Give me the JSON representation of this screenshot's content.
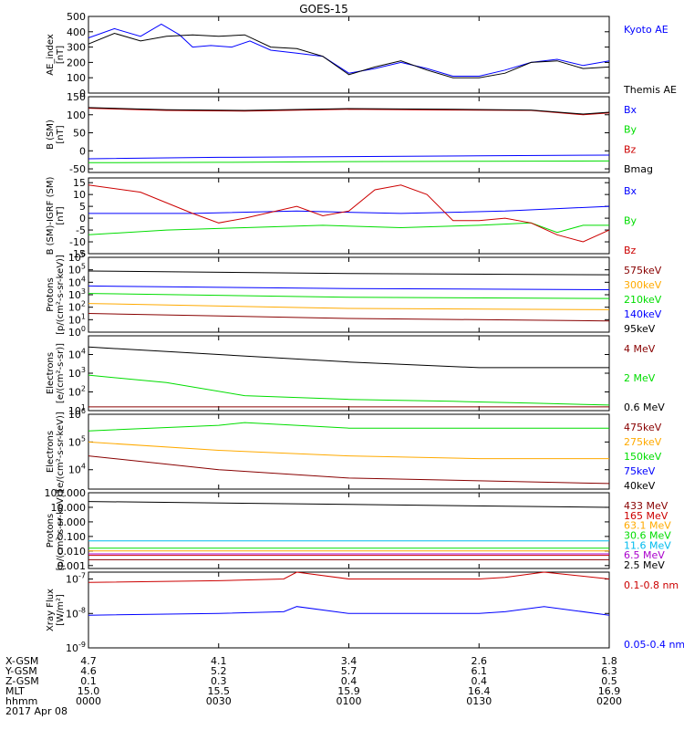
{
  "title": "GOES-15",
  "colors": {
    "black": "#000000",
    "blue": "#0000ff",
    "green": "#00dd00",
    "red": "#cc0000",
    "orange": "#ffaa00",
    "cyan": "#00bbee",
    "purple": "#aa00cc",
    "darkred": "#880000"
  },
  "chart_data": [
    {
      "type": "line",
      "ylabel": "AE_index\n[nT]",
      "yscale": "linear",
      "ylim": [
        0,
        500
      ],
      "yticks": [
        "0",
        "100",
        "200",
        "300",
        "400",
        "500"
      ],
      "series": [
        {
          "name": "Kyoto AE",
          "color": "blue",
          "x": [
            0,
            0.1,
            0.2,
            0.28,
            0.35,
            0.4,
            0.47,
            0.55,
            0.62,
            0.7,
            0.8,
            0.9,
            1.0,
            1.1,
            1.2,
            1.3,
            1.4,
            1.5,
            1.6,
            1.7,
            1.8,
            1.9,
            2.0
          ],
          "y": [
            360,
            420,
            370,
            450,
            380,
            300,
            310,
            300,
            340,
            280,
            260,
            240,
            130,
            160,
            200,
            160,
            110,
            110,
            150,
            200,
            220,
            180,
            210
          ]
        },
        {
          "name": "Themis AE",
          "color": "black",
          "x": [
            0,
            0.1,
            0.2,
            0.3,
            0.4,
            0.5,
            0.6,
            0.7,
            0.8,
            0.9,
            1.0,
            1.1,
            1.2,
            1.3,
            1.4,
            1.5,
            1.6,
            1.7,
            1.8,
            1.9,
            2.0
          ],
          "y": [
            320,
            390,
            340,
            370,
            380,
            370,
            380,
            300,
            290,
            240,
            120,
            170,
            210,
            150,
            100,
            100,
            130,
            200,
            210,
            160,
            170
          ]
        }
      ]
    },
    {
      "type": "line",
      "ylabel": "B (SM)\n[nT]",
      "yscale": "linear",
      "ylim": [
        -60,
        150
      ],
      "yticks": [
        "-50",
        "0",
        "50",
        "100",
        "150"
      ],
      "series": [
        {
          "name": "Bx",
          "color": "blue",
          "x": [
            0,
            0.5,
            1.0,
            1.5,
            2.0
          ],
          "y": [
            -22,
            -18,
            -16,
            -14,
            -12
          ]
        },
        {
          "name": "By",
          "color": "green",
          "x": [
            0,
            0.5,
            1.0,
            1.5,
            2.0
          ],
          "y": [
            -33,
            -32,
            -30,
            -29,
            -28
          ]
        },
        {
          "name": "Bz",
          "color": "red",
          "x": [
            0,
            0.3,
            0.6,
            1.0,
            1.4,
            1.7,
            1.9,
            2.0
          ],
          "y": [
            118,
            112,
            110,
            115,
            113,
            112,
            100,
            105
          ]
        },
        {
          "name": "Bmag",
          "color": "black",
          "x": [
            0,
            0.3,
            0.6,
            1.0,
            1.4,
            1.7,
            1.9,
            2.0
          ],
          "y": [
            120,
            114,
            112,
            117,
            115,
            113,
            102,
            107
          ]
        }
      ]
    },
    {
      "type": "line",
      "ylabel": "B (SM)-IGRF (SM)\n[nT]",
      "yscale": "linear",
      "ylim": [
        -15,
        17
      ],
      "yticks": [
        "-15",
        "-10",
        "-5",
        "0",
        "5",
        "10",
        "15"
      ],
      "series": [
        {
          "name": "Bx",
          "color": "blue",
          "x": [
            0,
            0.4,
            0.8,
            1.2,
            1.6,
            2.0
          ],
          "y": [
            2,
            2,
            3,
            2,
            3,
            5
          ]
        },
        {
          "name": "By",
          "color": "green",
          "x": [
            0,
            0.3,
            0.6,
            0.9,
            1.2,
            1.5,
            1.7,
            1.8,
            1.9,
            2.0
          ],
          "y": [
            -7,
            -5,
            -4,
            -3,
            -4,
            -3,
            -2,
            -6,
            -3,
            -3
          ]
        },
        {
          "name": "Bz",
          "color": "red",
          "x": [
            0,
            0.2,
            0.4,
            0.5,
            0.6,
            0.8,
            0.9,
            1.0,
            1.1,
            1.2,
            1.3,
            1.4,
            1.5,
            1.6,
            1.7,
            1.8,
            1.9,
            2.0
          ],
          "y": [
            14,
            11,
            2,
            -2,
            0,
            5,
            1,
            3,
            12,
            14,
            10,
            -1,
            -1,
            0,
            -2,
            -7,
            -10,
            -5
          ]
        }
      ]
    },
    {
      "type": "line",
      "ylabel": "Protons\n[p/(cm²-s-sr-keV)]",
      "yscale": "log",
      "ylim": [
        0,
        6
      ],
      "ytick_exponents": [
        "0",
        "1",
        "2",
        "3",
        "4",
        "5",
        "6"
      ],
      "ytick_base": "10",
      "series": [
        {
          "name": "575keV",
          "color": "darkred",
          "x": [
            0,
            1.0,
            2.0
          ],
          "y": [
            1.5,
            1.1,
            0.9
          ]
        },
        {
          "name": "300keV",
          "color": "orange",
          "x": [
            0,
            1.0,
            2.0
          ],
          "y": [
            2.3,
            1.9,
            1.8
          ]
        },
        {
          "name": "210keV",
          "color": "green",
          "x": [
            0,
            1.0,
            2.0
          ],
          "y": [
            3.1,
            2.8,
            2.7
          ]
        },
        {
          "name": "140keV",
          "color": "blue",
          "x": [
            0,
            1.0,
            2.0
          ],
          "y": [
            3.7,
            3.5,
            3.4
          ]
        },
        {
          "name": "95keV",
          "color": "black",
          "x": [
            0,
            1.0,
            2.0
          ],
          "y": [
            4.9,
            4.7,
            4.6
          ]
        }
      ]
    },
    {
      "type": "line",
      "ylabel": "Electrons\n[e/(cm²-s-sr)]",
      "yscale": "log",
      "ylim": [
        1,
        5
      ],
      "ytick_exponents": [
        "1",
        "2",
        "3",
        "4"
      ],
      "ytick_base": "10",
      "series": [
        {
          "name": "4 MeV",
          "color": "darkred",
          "x": [
            0,
            1.0,
            2.0
          ],
          "y": [
            1.2,
            1.2,
            1.2
          ]
        },
        {
          "name": "2 MeV",
          "color": "green",
          "x": [
            0,
            0.3,
            0.6,
            1.0,
            1.4,
            1.7,
            2.0
          ],
          "y": [
            2.9,
            2.5,
            1.8,
            1.6,
            1.5,
            1.4,
            1.3
          ]
        },
        {
          "name": "0.6 MeV",
          "color": "black",
          "x": [
            0,
            0.5,
            1.0,
            1.5,
            2.0
          ],
          "y": [
            4.4,
            4.0,
            3.6,
            3.3,
            3.3
          ]
        }
      ]
    },
    {
      "type": "line",
      "ylabel": "Electrons\n[e/(cm²-s-sr-keV)]",
      "yscale": "log",
      "ylim": [
        3.3,
        6
      ],
      "ytick_exponents": [
        "4",
        "5",
        "6"
      ],
      "ytick_base": "10",
      "series": [
        {
          "name": "475keV",
          "color": "darkred",
          "x": [
            0,
            0.5,
            1.0,
            1.5,
            2.0
          ],
          "y": [
            4.5,
            4.0,
            3.7,
            3.6,
            3.5
          ]
        },
        {
          "name": "275keV",
          "color": "orange",
          "x": [
            0,
            0.5,
            1.0,
            1.5,
            2.0
          ],
          "y": [
            5.0,
            4.7,
            4.5,
            4.4,
            4.4
          ]
        },
        {
          "name": "150keV",
          "color": "green",
          "x": [
            0,
            0.5,
            0.6,
            1.0,
            1.5,
            2.0
          ],
          "y": [
            5.4,
            5.6,
            5.7,
            5.5,
            5.5,
            5.5
          ]
        },
        {
          "name": "75keV",
          "color": "blue",
          "x": [],
          "y": []
        },
        {
          "name": "40keV",
          "color": "black",
          "x": [],
          "y": []
        }
      ]
    },
    {
      "type": "line",
      "ylabel": "Protons\n[p/(cm²-s-sr-keV)]",
      "yscale": "log",
      "ylim": [
        -3.2,
        2
      ],
      "yticks": [
        "0.001",
        "0.010",
        "0.100",
        "1.000",
        "10.000",
        "100.000"
      ],
      "series": [
        {
          "name": "433 MeV",
          "color": "darkred",
          "x": [
            0,
            1.0,
            2.0
          ],
          "y": [
            -2.6,
            -2.6,
            -2.6
          ]
        },
        {
          "name": "165 MeV",
          "color": "red",
          "x": [
            0,
            1.0,
            2.0
          ],
          "y": [
            -2.3,
            -2.3,
            -2.3
          ]
        },
        {
          "name": "63.1 MeV",
          "color": "orange",
          "x": [
            0,
            1.0,
            2.0
          ],
          "y": [
            -2.0,
            -2.0,
            -2.0
          ]
        },
        {
          "name": "30.6 MeV",
          "color": "green",
          "x": [
            0,
            1.0,
            2.0
          ],
          "y": [
            -1.8,
            -1.8,
            -1.8
          ]
        },
        {
          "name": "11.6 MeV",
          "color": "cyan",
          "x": [
            0,
            1.0,
            2.0
          ],
          "y": [
            -1.3,
            -1.3,
            -1.3
          ]
        },
        {
          "name": "6.5 MeV",
          "color": "purple",
          "x": [
            0,
            1.0,
            2.0
          ],
          "y": [
            -2.2,
            -2.2,
            -2.2
          ]
        },
        {
          "name": "2.5 MeV",
          "color": "black",
          "x": [
            0,
            1.0,
            2.0
          ],
          "y": [
            1.4,
            1.2,
            1.0
          ]
        }
      ]
    },
    {
      "type": "line",
      "ylabel": "Xray Flux\n[W/m²]",
      "yscale": "log",
      "ylim": [
        -9,
        -6.8
      ],
      "ytick_exponents": [
        "-9",
        "-8",
        "-7",
        "-6"
      ],
      "ytick_base": "10",
      "series": [
        {
          "name": "0.1-0.8 nm",
          "color": "red",
          "x": [
            0,
            0.5,
            0.75,
            0.8,
            1.0,
            1.5,
            1.6,
            1.75,
            2.0
          ],
          "y": [
            -7.1,
            -7.05,
            -7.0,
            -6.8,
            -7.0,
            -7.0,
            -6.95,
            -6.8,
            -7.0
          ]
        },
        {
          "name": "0.05-0.4 nm",
          "color": "blue",
          "x": [
            0,
            0.5,
            0.75,
            0.8,
            1.0,
            1.5,
            1.6,
            1.75,
            2.0
          ],
          "y": [
            -8.05,
            -8.0,
            -7.95,
            -7.8,
            -8.0,
            -8.0,
            -7.95,
            -7.8,
            -8.05
          ]
        }
      ]
    }
  ],
  "xaxis": {
    "row_labels": [
      "X-GSM",
      "Y-GSM",
      "Z-GSM",
      "MLT",
      "hhmm",
      "2017 Apr 08"
    ],
    "columns": [
      {
        "x": 0,
        "values": [
          "4.7",
          "4.6",
          "0.1",
          "15.0",
          "0000"
        ]
      },
      {
        "x": 0.5,
        "values": [
          "4.1",
          "5.2",
          "0.3",
          "15.5",
          "0030"
        ]
      },
      {
        "x": 1.0,
        "values": [
          "3.4",
          "5.7",
          "0.4",
          "15.9",
          "0100"
        ]
      },
      {
        "x": 1.5,
        "values": [
          "2.6",
          "6.1",
          "0.4",
          "16.4",
          "0130"
        ]
      },
      {
        "x": 2.0,
        "values": [
          "1.8",
          "6.3",
          "0.5",
          "16.9",
          "0200"
        ]
      }
    ]
  }
}
